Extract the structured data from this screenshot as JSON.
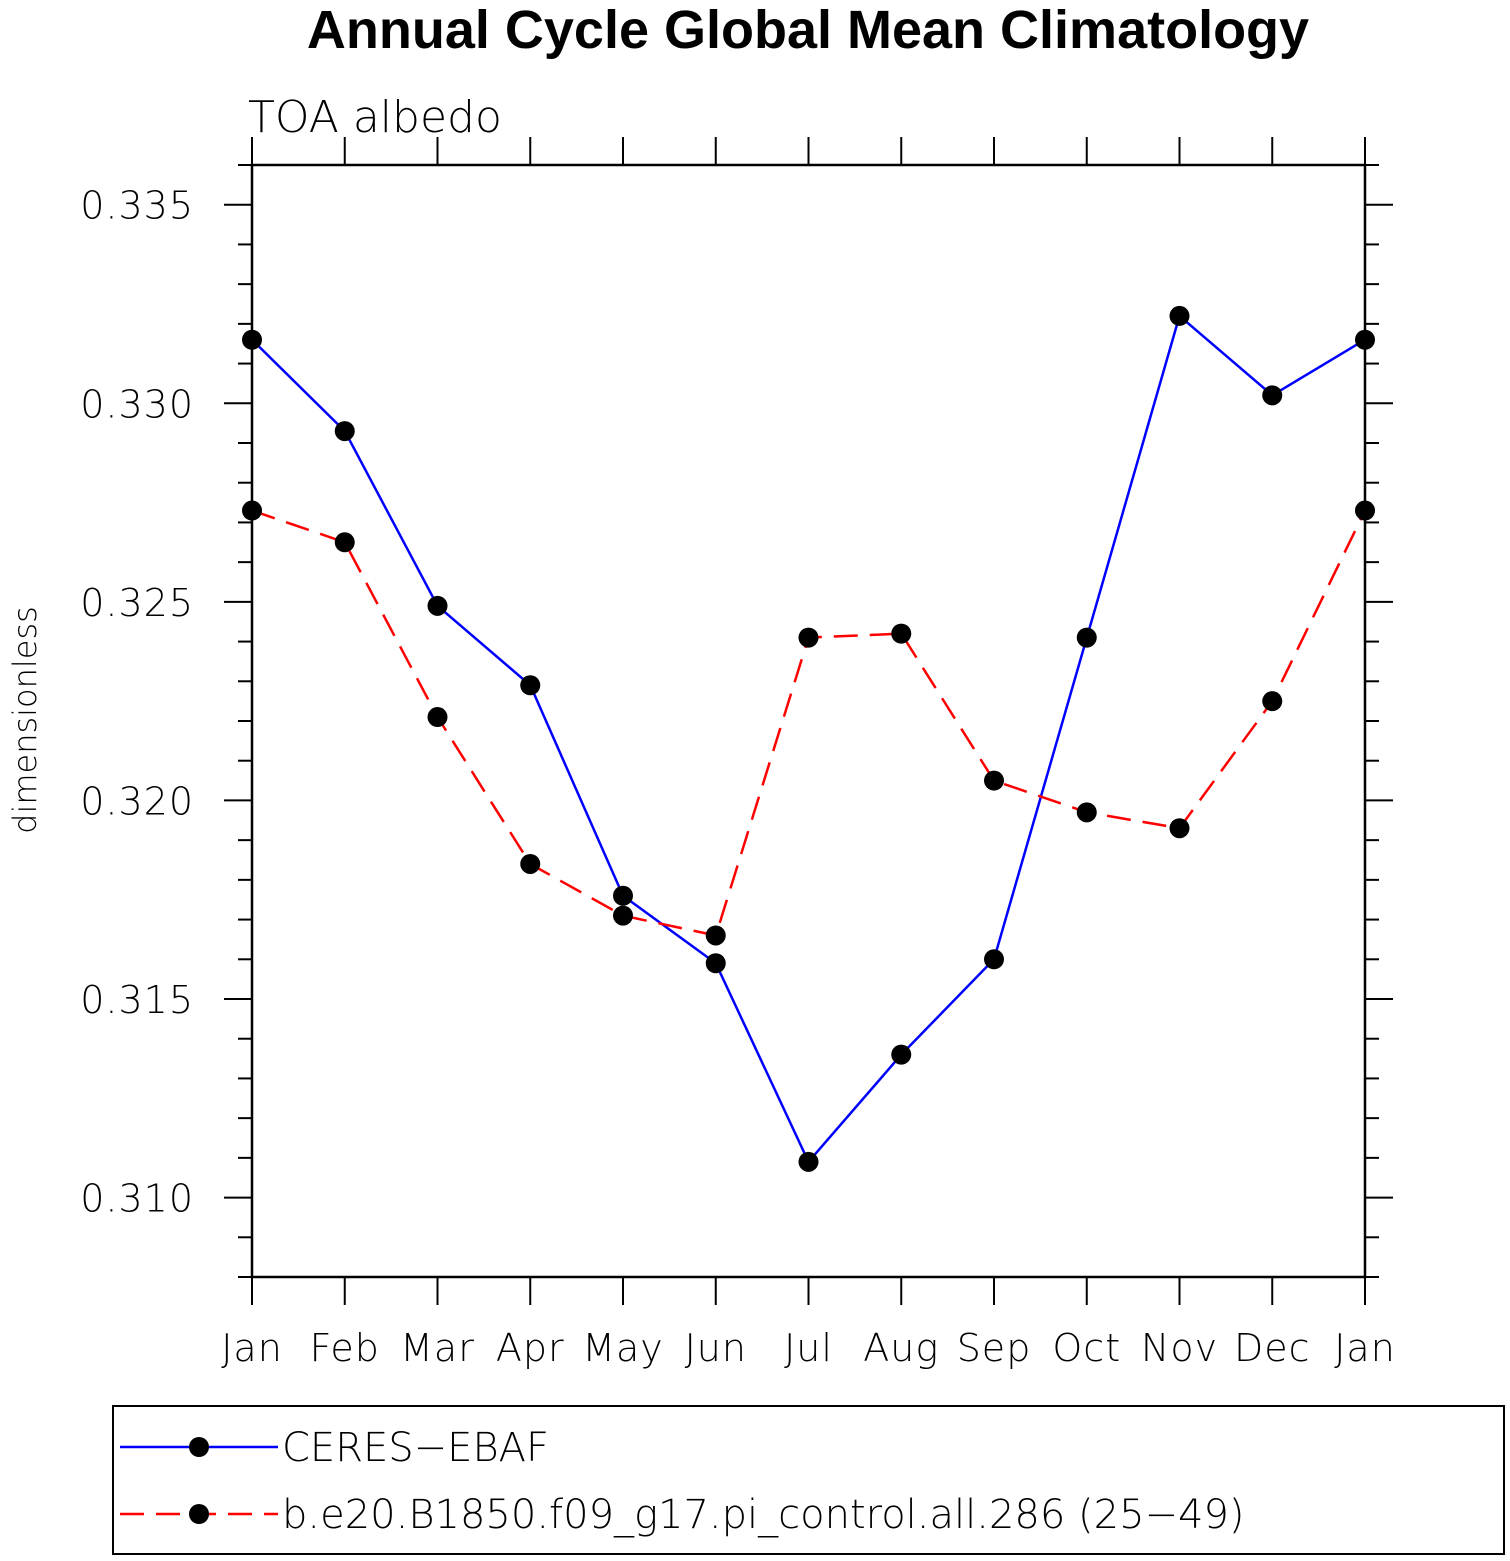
{
  "chart_data": {
    "type": "line",
    "title": "Annual Cycle Global Mean Climatology",
    "subtitle": "TOA albedo",
    "xlabel": "",
    "ylabel": "dimensionless",
    "categories": [
      "Jan",
      "Feb",
      "Mar",
      "Apr",
      "May",
      "Jun",
      "Jul",
      "Aug",
      "Sep",
      "Oct",
      "Nov",
      "Dec",
      "Jan"
    ],
    "ylim": [
      0.308,
      0.336
    ],
    "yticks": [
      0.31,
      0.315,
      0.32,
      0.325,
      0.33,
      0.335
    ],
    "ytick_labels": [
      "0.310",
      "0.315",
      "0.320",
      "0.325",
      "0.330",
      "0.335"
    ],
    "grid": false,
    "legend_position": "bottom",
    "series": [
      {
        "name": "CERES−EBAF",
        "color": "#0000ff",
        "style": "solid",
        "values": [
          0.3316,
          0.3293,
          0.3249,
          0.3229,
          0.3176,
          0.3159,
          0.3109,
          0.3136,
          0.316,
          0.3241,
          0.3322,
          0.3302,
          0.3316
        ]
      },
      {
        "name": "b.e20.B1850.f09_g17.pi_control.all.286 (25−49)",
        "color": "#ff0000",
        "style": "dashed",
        "values": [
          0.3273,
          0.3265,
          0.3221,
          0.3184,
          0.3171,
          0.3166,
          0.3241,
          0.3242,
          0.3205,
          0.3197,
          0.3193,
          0.3225,
          0.3273
        ]
      }
    ]
  }
}
